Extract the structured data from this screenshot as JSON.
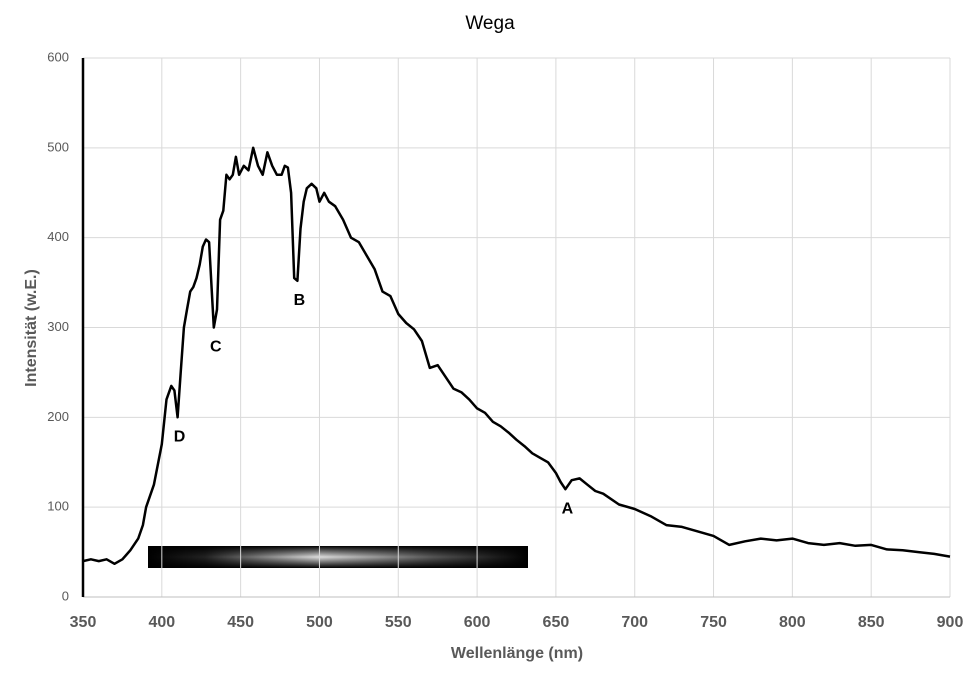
{
  "chart_data": {
    "type": "line",
    "title": "Wega",
    "x_label": "Wellenlänge (nm)",
    "y_label": "Intensität (w.E.)",
    "color": "#000000",
    "grid": true,
    "xlim": [
      350,
      900
    ],
    "xticks": [
      350,
      400,
      450,
      500,
      550,
      600,
      650,
      700,
      750,
      800,
      850,
      900
    ],
    "ylim": [
      0,
      600
    ],
    "yticks": [
      0,
      100,
      200,
      300,
      400,
      500,
      600
    ],
    "x": [
      350,
      355,
      360,
      365,
      370,
      375,
      380,
      385,
      388,
      390,
      395,
      400,
      403,
      406,
      408,
      410,
      412,
      414,
      416,
      418,
      420,
      422,
      424,
      426,
      428,
      430,
      432,
      433,
      435,
      437,
      439,
      441,
      443,
      445,
      447,
      449,
      452,
      455,
      458,
      461,
      464,
      467,
      470,
      473,
      476,
      478,
      480,
      482,
      484,
      486,
      488,
      490,
      492,
      495,
      498,
      500,
      503,
      506,
      510,
      515,
      520,
      525,
      530,
      535,
      540,
      545,
      550,
      555,
      560,
      565,
      570,
      575,
      580,
      585,
      590,
      595,
      600,
      605,
      610,
      615,
      620,
      625,
      630,
      635,
      640,
      645,
      650,
      653,
      656,
      660,
      665,
      670,
      675,
      680,
      690,
      700,
      710,
      720,
      730,
      740,
      750,
      760,
      770,
      780,
      790,
      800,
      810,
      820,
      830,
      840,
      850,
      860,
      870,
      880,
      890,
      900
    ],
    "values": [
      40,
      42,
      40,
      42,
      37,
      42,
      52,
      65,
      80,
      100,
      125,
      170,
      220,
      235,
      230,
      200,
      250,
      300,
      320,
      340,
      345,
      355,
      370,
      390,
      398,
      395,
      330,
      300,
      320,
      420,
      430,
      470,
      465,
      470,
      490,
      470,
      480,
      475,
      500,
      480,
      470,
      495,
      480,
      470,
      470,
      480,
      478,
      450,
      355,
      352,
      410,
      440,
      455,
      460,
      455,
      440,
      450,
      440,
      435,
      420,
      400,
      395,
      380,
      365,
      340,
      335,
      315,
      305,
      298,
      285,
      255,
      258,
      245,
      232,
      228,
      220,
      210,
      205,
      195,
      190,
      183,
      175,
      168,
      160,
      155,
      150,
      138,
      128,
      120,
      130,
      132,
      125,
      118,
      115,
      103,
      98,
      90,
      80,
      78,
      73,
      68,
      58,
      62,
      65,
      63,
      65,
      60,
      58,
      60,
      57,
      58,
      53,
      52,
      50,
      48,
      45
    ],
    "annotations": [
      {
        "text": "D",
        "x": 410
      },
      {
        "text": "C",
        "x": 433
      },
      {
        "text": "B",
        "x": 486
      },
      {
        "text": "A",
        "x": 656
      }
    ]
  }
}
